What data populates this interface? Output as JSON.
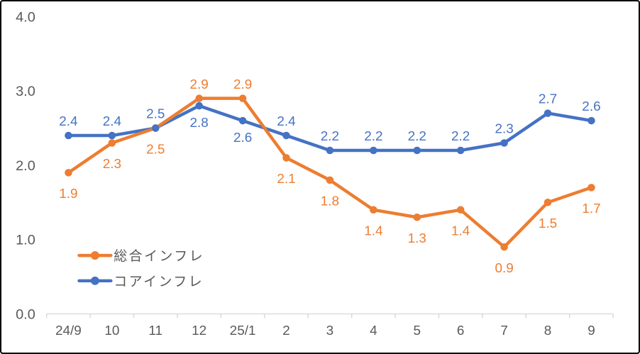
{
  "chart_data": {
    "type": "line",
    "title": "",
    "xlabel": "",
    "ylabel": "",
    "categories": [
      "24/9",
      "10",
      "11",
      "12",
      "25/1",
      "2",
      "3",
      "4",
      "5",
      "6",
      "7",
      "8",
      "9"
    ],
    "series": [
      {
        "name": "総合インフレ",
        "color": "#ED7D31",
        "values": [
          1.9,
          2.3,
          2.5,
          2.9,
          2.9,
          2.1,
          1.8,
          1.4,
          1.3,
          1.4,
          0.9,
          1.5,
          1.7
        ],
        "label_sides": [
          "below",
          "below",
          "below",
          "above",
          "above",
          "below",
          "below",
          "below",
          "below",
          "below",
          "below",
          "below",
          "below"
        ]
      },
      {
        "name": "コアインフレ",
        "color": "#4472C4",
        "values": [
          2.4,
          2.4,
          2.5,
          2.8,
          2.6,
          2.4,
          2.2,
          2.2,
          2.2,
          2.2,
          2.3,
          2.7,
          2.6
        ],
        "label_sides": [
          "above",
          "above",
          "above",
          "below",
          "below",
          "above",
          "above",
          "above",
          "above",
          "above",
          "above",
          "above",
          "above"
        ]
      }
    ],
    "ylim": [
      0,
      4
    ],
    "yticks": [
      {
        "value": 0,
        "label": "0.0"
      },
      {
        "value": 1,
        "label": "1.0"
      },
      {
        "value": 2,
        "label": "2.0"
      },
      {
        "value": 3,
        "label": "3.0"
      },
      {
        "value": 4,
        "label": "4.0"
      }
    ],
    "grid": false,
    "data_labels": true,
    "legend_position": "inside-bottom-left",
    "colors": {
      "axis_line": "#D9D9D9",
      "tick": "#D9D9D9",
      "axis_text": "#595959",
      "legend_text": "#595959",
      "frame_border": "#000000",
      "background": "#FFFFFF"
    }
  }
}
